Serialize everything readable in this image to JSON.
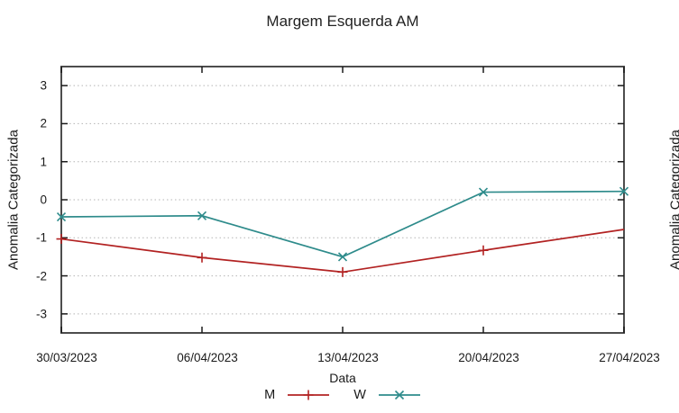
{
  "title": "Margem Esquerda AM",
  "right_fragment": {
    "ylabel": "Anomalia Categorizada"
  },
  "chart_data": {
    "type": "line",
    "title": "Margem Esquerda AM",
    "xlabel": "Data",
    "ylabel": "Anomalia Categorizada",
    "categories": [
      "30/03/2023",
      "06/04/2023",
      "13/04/2023",
      "20/04/2023",
      "27/04/2023"
    ],
    "y_ticks": [
      -3,
      -2,
      -1,
      0,
      1,
      2,
      3
    ],
    "ylim": [
      -3.5,
      3.5
    ],
    "grid": "horizontal-dotted",
    "legend_position": "bottom-center",
    "colors": {
      "axis_border": "#4d4d4d",
      "grid": "#b5b5b5",
      "tick": "#1a1a1a"
    },
    "series": [
      {
        "name": "M",
        "color": "#b22222",
        "marker": "plus",
        "values": [
          -1.03,
          -1.52,
          -1.9,
          -1.33,
          -0.78
        ],
        "marker_visible": [
          true,
          true,
          true,
          true,
          false
        ]
      },
      {
        "name": "W",
        "color": "#2e8b8b",
        "marker": "cross",
        "values": [
          -0.45,
          -0.42,
          -1.5,
          0.2,
          0.22
        ],
        "marker_visible": [
          true,
          true,
          true,
          true,
          true
        ]
      }
    ]
  }
}
